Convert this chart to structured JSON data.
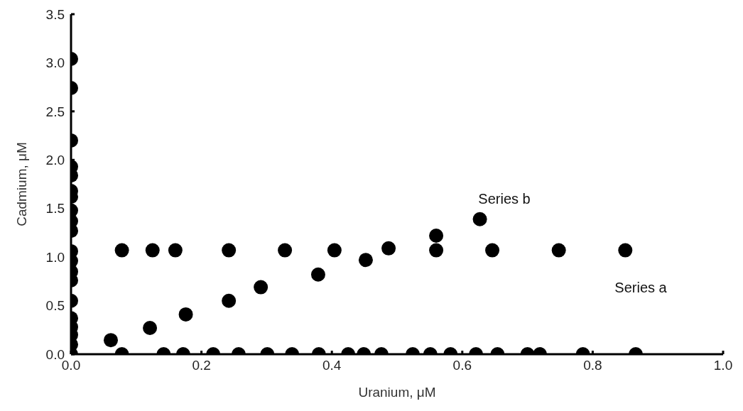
{
  "chart_data": {
    "type": "scatter",
    "xlabel": "Uranium, μM",
    "ylabel": "Cadmium, μM",
    "xlim": [
      0,
      1.0
    ],
    "xticks": [
      {
        "value": 0,
        "label": "0.0"
      },
      {
        "value": 0.2,
        "label": "0.2"
      },
      {
        "value": 0.4,
        "label": "0.4"
      },
      {
        "value": 0.6,
        "label": "0.6"
      },
      {
        "value": 0.8,
        "label": "0.8"
      },
      {
        "value": 1.0,
        "label": "1.0"
      }
    ],
    "ylim": [
      0,
      3.5
    ],
    "yticks": [
      {
        "value": 0,
        "label": "0.0"
      },
      {
        "value": 0.5,
        "label": "0.5"
      },
      {
        "value": 1.0,
        "label": "1.0"
      },
      {
        "value": 1.5,
        "label": "1.5"
      },
      {
        "value": 2.0,
        "label": "2.0"
      },
      {
        "value": 2.5,
        "label": "2.5"
      },
      {
        "value": 3.0,
        "label": "3.0"
      },
      {
        "value": 3.5,
        "label": "3.5"
      }
    ],
    "grid": false,
    "legend": false,
    "marker": "circle",
    "series": [
      {
        "color": "#000000",
        "x": [
          0.061,
          0.121,
          0.176,
          0.242,
          0.291,
          0.379,
          0.452,
          0.487,
          0.56,
          0.627
        ],
        "values": [
          0.145,
          0.27,
          0.41,
          0.55,
          0.69,
          0.82,
          0.97,
          1.09,
          1.22,
          1.39
        ]
      },
      {
        "color": "#000000",
        "x": [
          0.078,
          0.125,
          0.16,
          0.242,
          0.328,
          0.404,
          0.56,
          0.646,
          0.748,
          0.85
        ],
        "values": [
          1.07,
          1.07,
          1.07,
          1.07,
          1.07,
          1.07,
          1.07,
          1.07,
          1.07,
          1.07
        ]
      },
      {
        "color": "#000000",
        "x": [
          0.078,
          0.142,
          0.172,
          0.218,
          0.257,
          0.301,
          0.339,
          0.38,
          0.425,
          0.449,
          0.476,
          0.524,
          0.551,
          0.582,
          0.621,
          0.654,
          0.7,
          0.719,
          0.785,
          0.866
        ],
        "values": [
          0,
          0,
          0,
          0,
          0,
          0,
          0,
          0,
          0,
          0,
          0,
          0,
          0,
          0,
          0,
          0,
          0,
          0,
          0,
          0
        ]
      },
      {
        "color": "#000000",
        "x": [
          0,
          0,
          0,
          0,
          0,
          0,
          0,
          0,
          0,
          0,
          0,
          0,
          0,
          0,
          0,
          0,
          0,
          0,
          0,
          0
        ],
        "values": [
          3.04,
          2.74,
          2.2,
          1.93,
          1.84,
          1.68,
          1.62,
          1.48,
          1.37,
          1.27,
          1.06,
          0.96,
          0.85,
          0.76,
          0.55,
          0.37,
          0.28,
          0.2,
          0.1,
          0
        ]
      }
    ],
    "annotations": [
      "Series b",
      "Series a"
    ]
  }
}
